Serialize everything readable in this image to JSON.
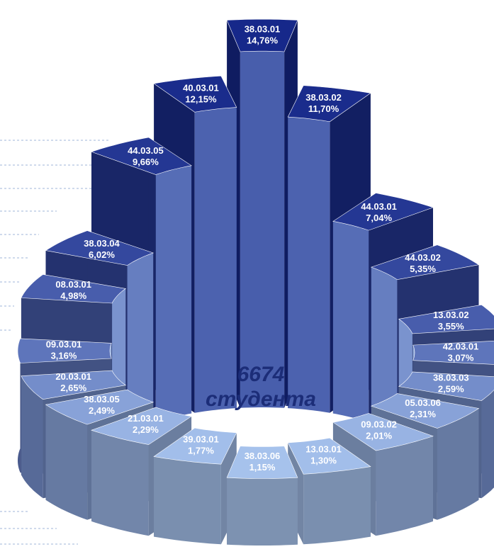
{
  "chart_data": {
    "type": "radialbar",
    "categories": [
      "38.03.01",
      "38.03.02",
      "44.03.01",
      "44.03.02",
      "13.03.02",
      "42.03.01",
      "38.03.03",
      "05.03.06",
      "09.03.02",
      "13.03.01",
      "38.03.06",
      "39.03.01",
      "21.03.01",
      "38.03.05",
      "20.03.01",
      "09.03.01",
      "08.03.01",
      "38.03.04",
      "44.03.05",
      "40.03.01"
    ],
    "values": [
      14.76,
      11.7,
      7.04,
      5.35,
      3.55,
      3.07,
      2.59,
      2.31,
      2.01,
      1.3,
      1.15,
      1.77,
      2.29,
      2.49,
      2.65,
      3.16,
      4.98,
      6.02,
      9.66,
      12.15
    ],
    "value_labels": [
      "14,76%",
      "11,70%",
      "7,04%",
      "5,35%",
      "3,55%",
      "3,07%",
      "2,59%",
      "2,31%",
      "2,01%",
      "1,30%",
      "1,15%",
      "1,77%",
      "2,29%",
      "2,49%",
      "2,65%",
      "3,16%",
      "4,98%",
      "6,02%",
      "9,66%",
      "12,15%"
    ],
    "total_label": "6674",
    "total_unit": "студента",
    "color_range": [
      "#16288a",
      "#a6c2ec"
    ]
  }
}
